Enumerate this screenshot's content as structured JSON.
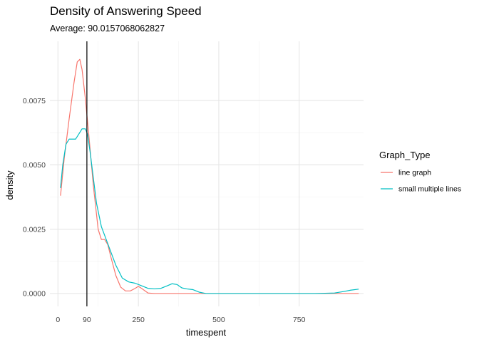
{
  "chart_data": {
    "type": "line",
    "title": "Density of Answering Speed",
    "subtitle": "Average: 90.0157068062827",
    "xlabel": "timespent",
    "ylabel": "density",
    "xlim": [
      -25,
      950
    ],
    "ylim": [
      -0.0005,
      0.0098
    ],
    "x_ticks": [
      0,
      250,
      500,
      750
    ],
    "x_tick_labels": [
      "0",
      "250",
      "500",
      "750"
    ],
    "y_ticks": [
      0.0,
      0.0025,
      0.005,
      0.0075
    ],
    "y_tick_labels": [
      "0.0000",
      "0.0025",
      "0.0050",
      "0.0075"
    ],
    "grid": true,
    "vline": {
      "x": 90.0157068062827,
      "label": "90",
      "color": "#000000"
    },
    "legend": {
      "title": "Graph_Type",
      "position": "right"
    },
    "series": [
      {
        "name": "line graph",
        "color": "#F8766D",
        "x": [
          8,
          20,
          35,
          50,
          60,
          68,
          75,
          85,
          95,
          110,
          125,
          135,
          145,
          155,
          165,
          180,
          195,
          210,
          225,
          240,
          250,
          260,
          280,
          300,
          350,
          400,
          500,
          600,
          700,
          800,
          900,
          935
        ],
        "y": [
          0.0038,
          0.0053,
          0.0068,
          0.0082,
          0.009,
          0.0091,
          0.0087,
          0.0076,
          0.0063,
          0.0042,
          0.0025,
          0.0021,
          0.0021,
          0.0019,
          0.0014,
          0.0007,
          0.00025,
          0.0001,
          0.0001,
          0.0002,
          0.00028,
          0.0002,
          2e-05,
          0.0,
          0.0,
          0.0,
          0.0,
          0.0,
          0.0,
          0.0,
          0.0,
          0.0
        ]
      },
      {
        "name": "small multiple lines",
        "color": "#00BFC4",
        "x": [
          8,
          15,
          25,
          35,
          45,
          55,
          65,
          75,
          85,
          92,
          100,
          110,
          120,
          135,
          150,
          165,
          180,
          200,
          220,
          240,
          260,
          280,
          300,
          320,
          340,
          355,
          370,
          385,
          400,
          420,
          440,
          460,
          500,
          600,
          700,
          800,
          860,
          890,
          910,
          935
        ],
        "y": [
          0.0041,
          0.005,
          0.0058,
          0.006,
          0.006,
          0.006,
          0.0062,
          0.0064,
          0.0064,
          0.0062,
          0.0055,
          0.0045,
          0.0035,
          0.0026,
          0.0021,
          0.0016,
          0.0011,
          0.0006,
          0.00045,
          0.0004,
          0.0003,
          0.0002,
          0.00018,
          0.0002,
          0.0003,
          0.00038,
          0.00035,
          0.00022,
          0.00018,
          0.00015,
          5e-05,
          0.0,
          0.0,
          0.0,
          0.0,
          0.0,
          2e-05,
          8e-05,
          0.00013,
          0.00017
        ]
      }
    ]
  }
}
